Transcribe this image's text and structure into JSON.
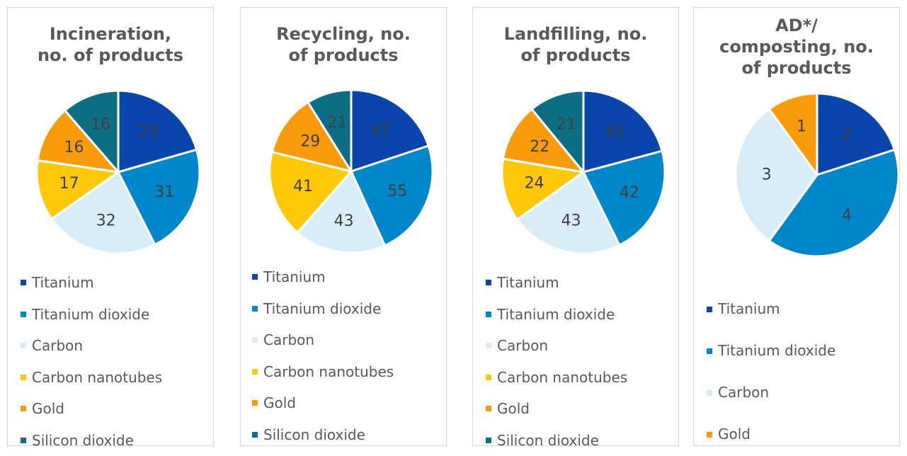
{
  "colors": {
    "Titanium": "#0a45ae",
    "Titanium dioxide": "#0087c9",
    "Carbon": "#d9edf9",
    "Carbon nanotubes": "#ffc90a",
    "Gold": "#f99b0a",
    "Silicon dioxide": "#0d6e83"
  },
  "chart_data": [
    {
      "type": "pie",
      "title_lines": [
        "Incineration,",
        "no. of products"
      ],
      "labels": [
        "Titanium",
        "Titanium dioxide",
        "Carbon",
        "Carbon nanotubes",
        "Gold",
        "Silicon dioxide"
      ],
      "values": [
        29,
        31,
        32,
        17,
        16,
        16
      ],
      "legend_position": "bottom"
    },
    {
      "type": "pie",
      "title_lines": [
        "Recycling, no.",
        "of products"
      ],
      "labels": [
        "Titanium",
        "Titanium dioxide",
        "Carbon",
        "Carbon nanotubes",
        "Gold",
        "Silicon dioxide"
      ],
      "values": [
        47,
        55,
        43,
        41,
        29,
        21
      ],
      "legend_position": "bottom"
    },
    {
      "type": "pie",
      "title_lines": [
        "Landfilling, no.",
        "of products"
      ],
      "labels": [
        "Titanium",
        "Titanium dioxide",
        "Carbon",
        "Carbon nanotubes",
        "Gold",
        "Silicon dioxide"
      ],
      "values": [
        40,
        42,
        43,
        24,
        22,
        21
      ],
      "legend_position": "bottom"
    },
    {
      "type": "pie",
      "title_lines": [
        "AD*/",
        "composting, no.",
        "of products"
      ],
      "labels": [
        "Titanium",
        "Titanium dioxide",
        "Carbon",
        "Gold"
      ],
      "values": [
        2,
        4,
        3,
        1
      ],
      "legend_position": "bottom"
    }
  ]
}
